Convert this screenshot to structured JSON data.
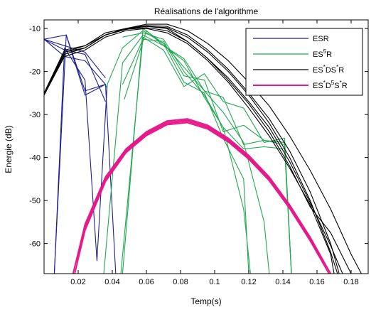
{
  "chart_data": {
    "type": "line",
    "title": "Réalisations de l'algorithme",
    "xlabel": "Temp(s)",
    "ylabel": "Energie (dB)",
    "xlim": [
      0,
      0.19
    ],
    "ylim": [
      -67,
      -8
    ],
    "xticks": [
      0.02,
      0.04,
      0.06,
      0.08,
      0.1,
      0.12,
      0.14,
      0.16,
      0.18
    ],
    "xtick_labels": [
      "0.02",
      "0.04",
      "0.06",
      "0.08",
      "0.1",
      "0.12",
      "0.14",
      "0.16",
      "0.18"
    ],
    "yticks": [
      -10,
      -20,
      -30,
      -40,
      -50,
      -60
    ],
    "ytick_labels": [
      "-10",
      "-20",
      "-30",
      "-40",
      "-50",
      "-60"
    ],
    "grid": false,
    "legend_position": "top-right",
    "legend": [
      {
        "base": "ES",
        "sup": "",
        "tail": "R",
        "color": "#1f1f8f"
      },
      {
        "base": "ES",
        "sup": "5",
        "tail": "R",
        "color": "#22a651"
      },
      {
        "base": "ES",
        "sup": "*",
        "mid": "DS",
        "sup2": "*",
        "tail": "R",
        "color": "#000000"
      },
      {
        "base": "ES",
        "sup": "*",
        "mid": "D",
        "sup2": "5",
        "mid2": "S",
        "sup3": "*",
        "tail": "R",
        "color": "#e6198a"
      }
    ],
    "series": [
      {
        "group": 0,
        "color": "#1f1f8f",
        "lines": [
          {
            "x": [
              0.0,
              0.012,
              0.024,
              0.036,
              0.042
            ],
            "y": [
              -12.5,
              -16.5,
              -17.5,
              -23.0,
              -67.0
            ]
          },
          {
            "x": [
              0.0,
              0.012,
              0.024,
              0.036
            ],
            "y": [
              -12.5,
              -15.0,
              -16.0,
              -27.0
            ]
          },
          {
            "x": [
              0.0,
              0.013,
              0.024,
              0.036
            ],
            "y": [
              -12.5,
              -11.5,
              -25.5,
              -23.0
            ]
          },
          {
            "x": [
              0.006,
              0.013,
              0.024,
              0.036
            ],
            "y": [
              -67.0,
              -11.5,
              -24.5,
              -23.0
            ]
          },
          {
            "x": [
              0.006,
              0.012,
              0.024,
              0.031,
              0.037
            ],
            "y": [
              -67.0,
              -14.5,
              -22.0,
              -64.0,
              -23.0
            ]
          },
          {
            "x": [
              0.0,
              0.012,
              0.024,
              0.036
            ],
            "y": [
              -12.5,
              -14.0,
              -15.5,
              -21.5
            ]
          }
        ]
      },
      {
        "group": 1,
        "color": "#22a651",
        "lines": [
          {
            "x": [
              0.035,
              0.046,
              0.058,
              0.07,
              0.082,
              0.094,
              0.105,
              0.117,
              0.121
            ],
            "y": [
              -67.0,
              -18.0,
              -11.5,
              -14.0,
              -17.5,
              -26.0,
              -33.0,
              -52.0,
              -67.0
            ]
          },
          {
            "x": [
              0.036,
              0.046,
              0.058,
              0.07,
              0.082,
              0.094,
              0.105,
              0.117,
              0.129,
              0.132
            ],
            "y": [
              -24.0,
              -14.5,
              -10.5,
              -13.5,
              -19.0,
              -24.5,
              -29.5,
              -36.5,
              -55.0,
              -67.0
            ]
          },
          {
            "x": [
              0.046,
              0.058,
              0.07,
              0.082,
              0.094,
              0.105,
              0.117,
              0.129,
              0.141,
              0.145
            ],
            "y": [
              -23.0,
              -12.5,
              -13.0,
              -21.0,
              -22.0,
              -34.0,
              -32.5,
              -36.0,
              -36.5,
              -67.0
            ]
          },
          {
            "x": [
              0.046,
              0.058,
              0.07,
              0.082,
              0.094,
              0.105,
              0.117,
              0.129,
              0.141,
              0.145
            ],
            "y": [
              -12.0,
              -11.0,
              -12.5,
              -20.0,
              -25.5,
              -33.0,
              -38.0,
              -37.5,
              -38.0,
              -67.0
            ]
          },
          {
            "x": [
              0.047,
              0.06,
              0.07,
              0.082,
              0.094,
              0.105,
              0.117,
              0.129,
              0.141,
              0.145
            ],
            "y": [
              -26.5,
              -10.5,
              -14.0,
              -17.0,
              -24.5,
              -26.0,
              -37.0,
              -36.0,
              -37.0,
              -67.0
            ]
          },
          {
            "x": [
              0.045,
              0.058,
              0.07,
              0.082,
              0.094,
              0.105,
              0.117,
              0.129,
              0.141,
              0.145
            ],
            "y": [
              -67.0,
              -12.0,
              -15.0,
              -23.5,
              -20.5,
              -27.0,
              -28.5,
              -36.5,
              -35.5,
              -67.0
            ]
          },
          {
            "x": [
              0.046,
              0.058,
              0.07,
              0.082,
              0.094,
              0.105,
              0.117,
              0.12
            ],
            "y": [
              -67.0,
              -10.0,
              -13.5,
              -22.5,
              -25.0,
              -35.5,
              -45.0,
              -67.0
            ]
          }
        ]
      },
      {
        "group": 2,
        "color": "#000000",
        "lines": [
          {
            "x": [
              0.0,
              0.012,
              0.024,
              0.036,
              0.048,
              0.06,
              0.072,
              0.084,
              0.096,
              0.108,
              0.12,
              0.132,
              0.144,
              0.156,
              0.168,
              0.172
            ],
            "y": [
              -25.5,
              -16.0,
              -14.5,
              -11.5,
              -10.0,
              -9.5,
              -9.8,
              -12.0,
              -15.5,
              -20.0,
              -25.5,
              -32.0,
              -40.0,
              -50.0,
              -62.0,
              -67.0
            ]
          },
          {
            "x": [
              0.0,
              0.012,
              0.024,
              0.036,
              0.048,
              0.06,
              0.072,
              0.084,
              0.096,
              0.108,
              0.12,
              0.132,
              0.144,
              0.156,
              0.168,
              0.173
            ],
            "y": [
              -25.0,
              -15.5,
              -14.0,
              -11.0,
              -10.0,
              -9.3,
              -9.5,
              -11.5,
              -15.0,
              -19.5,
              -25.0,
              -31.0,
              -38.5,
              -48.0,
              -60.0,
              -67.0
            ]
          },
          {
            "x": [
              0.0,
              0.012,
              0.024,
              0.036,
              0.048,
              0.06,
              0.072,
              0.084,
              0.096,
              0.108,
              0.12,
              0.132,
              0.144,
              0.156,
              0.168,
              0.175
            ],
            "y": [
              -25.0,
              -15.0,
              -14.0,
              -11.5,
              -10.2,
              -9.5,
              -10.0,
              -13.0,
              -17.0,
              -21.5,
              -27.0,
              -33.0,
              -41.0,
              -50.5,
              -60.5,
              -67.0
            ]
          },
          {
            "x": [
              0.0,
              0.012,
              0.024,
              0.036,
              0.048,
              0.06,
              0.072,
              0.084,
              0.096,
              0.108,
              0.12,
              0.132,
              0.144,
              0.156,
              0.168,
              0.18,
              0.186
            ],
            "y": [
              -25.5,
              -15.5,
              -14.5,
              -11.5,
              -10.0,
              -9.0,
              -9.0,
              -10.5,
              -13.5,
              -17.5,
              -22.5,
              -28.0,
              -35.0,
              -43.0,
              -52.0,
              -62.5,
              -67.0
            ]
          },
          {
            "x": [
              0.0,
              0.012,
              0.024,
              0.036,
              0.048,
              0.06,
              0.072,
              0.084,
              0.096,
              0.108,
              0.12,
              0.132,
              0.144,
              0.156,
              0.168,
              0.18
            ],
            "y": [
              -25.5,
              -16.0,
              -14.5,
              -11.5,
              -10.2,
              -9.8,
              -10.5,
              -13.0,
              -17.0,
              -22.0,
              -27.5,
              -34.0,
              -42.0,
              -51.5,
              -57.5,
              -67.0
            ]
          },
          {
            "x": [
              0.0,
              0.012,
              0.024,
              0.036,
              0.048,
              0.06,
              0.072,
              0.084,
              0.096,
              0.108,
              0.12,
              0.132,
              0.144,
              0.156,
              0.168,
              0.17
            ],
            "y": [
              -25.5,
              -16.5,
              -15.0,
              -12.0,
              -10.5,
              -10.0,
              -11.0,
              -13.5,
              -17.5,
              -22.5,
              -28.5,
              -35.0,
              -42.5,
              -51.0,
              -62.5,
              -67.0
            ]
          }
        ]
      },
      {
        "group": 3,
        "color": "#e6198a",
        "lines": [
          {
            "x": [
              0.017,
              0.024,
              0.036,
              0.048,
              0.06,
              0.072,
              0.084,
              0.096,
              0.108,
              0.12,
              0.132,
              0.144,
              0.156,
              0.168
            ],
            "y": [
              -67.0,
              -55.5,
              -44.5,
              -38.0,
              -34.0,
              -31.5,
              -31.0,
              -32.5,
              -35.5,
              -39.5,
              -44.5,
              -51.0,
              -58.5,
              -67.0
            ]
          },
          {
            "x": [
              0.017,
              0.024,
              0.036,
              0.048,
              0.06,
              0.072,
              0.084,
              0.096,
              0.108,
              0.12,
              0.132,
              0.144,
              0.156,
              0.168
            ],
            "y": [
              -67.0,
              -56.0,
              -45.0,
              -38.3,
              -34.3,
              -31.8,
              -31.3,
              -32.8,
              -35.8,
              -39.8,
              -44.8,
              -51.3,
              -58.8,
              -67.0
            ]
          },
          {
            "x": [
              0.017,
              0.024,
              0.036,
              0.048,
              0.06,
              0.072,
              0.084,
              0.096,
              0.108,
              0.12,
              0.132,
              0.144,
              0.156,
              0.167
            ],
            "y": [
              -67.0,
              -56.5,
              -45.3,
              -38.6,
              -34.6,
              -32.1,
              -31.6,
              -33.1,
              -36.1,
              -40.1,
              -45.1,
              -51.6,
              -59.1,
              -67.0
            ]
          },
          {
            "x": [
              0.018,
              0.024,
              0.036,
              0.048,
              0.06,
              0.072,
              0.084,
              0.096,
              0.108,
              0.12,
              0.132,
              0.144,
              0.156,
              0.167
            ],
            "y": [
              -67.0,
              -57.0,
              -45.6,
              -38.9,
              -34.9,
              -32.4,
              -31.9,
              -33.4,
              -36.4,
              -40.4,
              -45.4,
              -51.9,
              -59.4,
              -67.0
            ]
          }
        ]
      }
    ]
  }
}
